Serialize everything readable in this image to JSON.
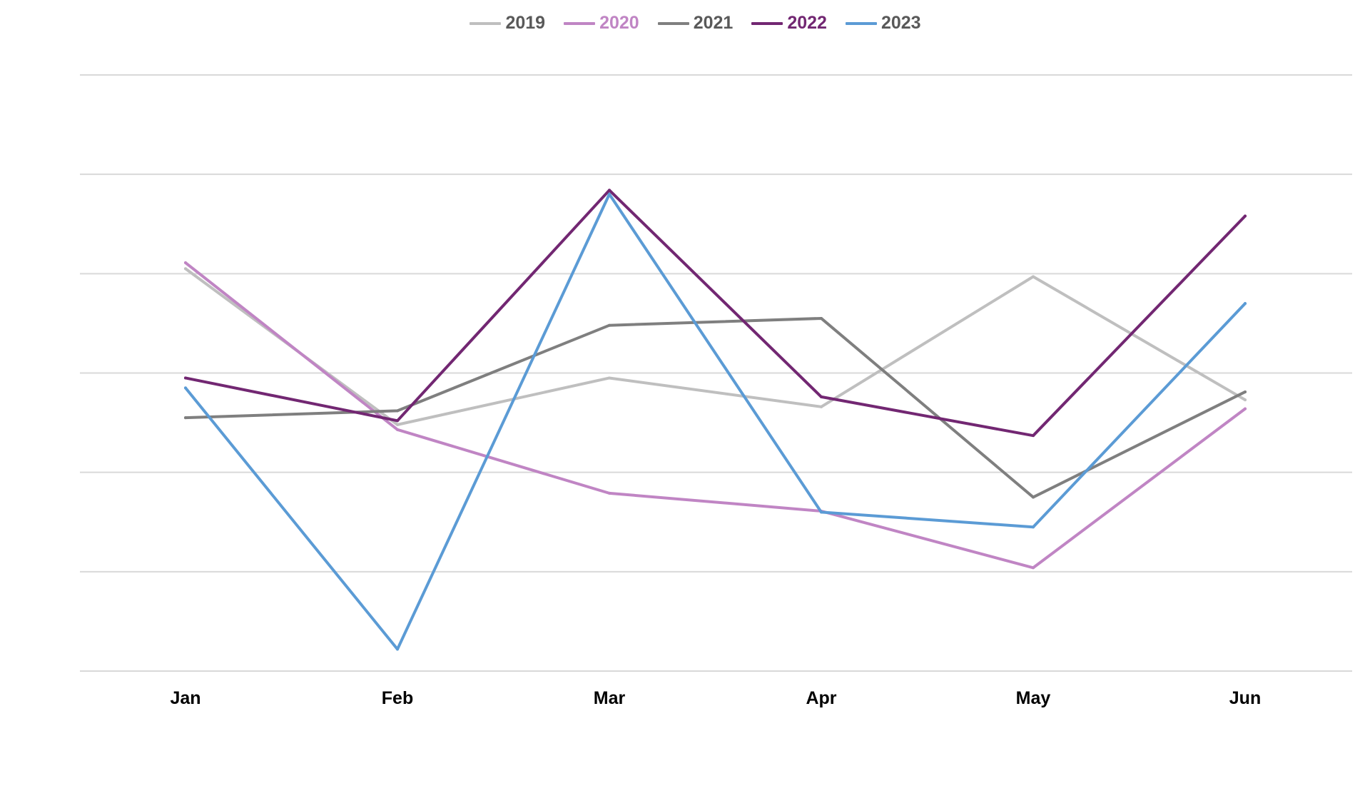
{
  "chart_data": {
    "type": "line",
    "categories": [
      "Jan",
      "Feb",
      "Mar",
      "Apr",
      "May",
      "Jun"
    ],
    "ylim": [
      0,
      6
    ],
    "y_ticks": [
      0,
      1,
      2,
      3,
      4,
      5,
      6
    ],
    "grid": true,
    "legend_position": "top",
    "series": [
      {
        "name": "2019",
        "color": "#BFBFBF",
        "values": [
          4.05,
          2.48,
          2.95,
          2.66,
          3.97,
          2.73
        ]
      },
      {
        "name": "2020",
        "color": "#C085C4",
        "values": [
          4.11,
          2.43,
          1.79,
          1.61,
          1.04,
          2.64
        ]
      },
      {
        "name": "2021",
        "color": "#7F7F7F",
        "values": [
          2.55,
          2.62,
          3.48,
          3.55,
          1.75,
          2.81
        ]
      },
      {
        "name": "2022",
        "color": "#722772",
        "values": [
          2.95,
          2.52,
          4.84,
          2.76,
          2.37,
          4.58
        ]
      },
      {
        "name": "2023",
        "color": "#5B9BD5",
        "values": [
          2.85,
          0.22,
          4.8,
          1.6,
          1.45,
          3.7
        ]
      }
    ]
  }
}
